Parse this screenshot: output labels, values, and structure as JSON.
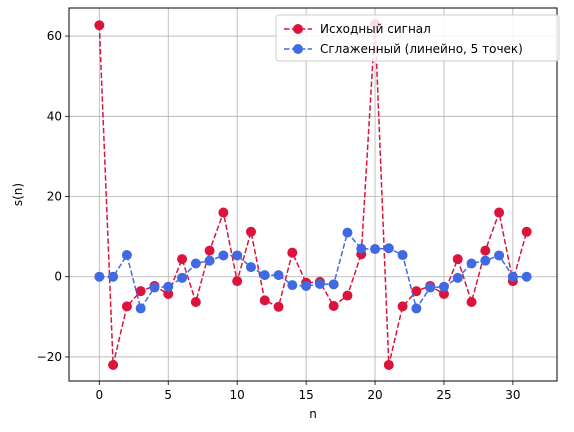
{
  "chart_data": {
    "type": "line",
    "xlabel": "n",
    "ylabel": "s(n)",
    "xlim": [
      -2.2,
      33.2
    ],
    "ylim": [
      -26,
      67
    ],
    "xticks": [
      0,
      5,
      10,
      15,
      20,
      25,
      30
    ],
    "yticks": [
      -20,
      0,
      20,
      40,
      60
    ],
    "ytick_labels": [
      "−20",
      "0",
      "20",
      "40",
      "60"
    ],
    "grid": true,
    "legend_position": "top-right",
    "x": [
      0,
      1,
      2,
      3,
      4,
      5,
      6,
      7,
      8,
      9,
      10,
      11,
      12,
      13,
      14,
      15,
      16,
      17,
      18,
      19,
      20,
      21,
      22,
      23,
      24,
      25,
      26,
      27,
      28,
      29,
      30,
      31
    ],
    "series": [
      {
        "name": "Исходный сигнал",
        "color": "#dc143c",
        "values": [
          62.7,
          -22,
          -7.4,
          -3.6,
          -2.3,
          -4.3,
          4.4,
          -6.3,
          6.5,
          16,
          -1.1,
          11.2,
          -5.9,
          -7.5,
          6,
          -1.5,
          -1.3,
          -7.3,
          -4.7,
          5.6,
          63,
          -22,
          -7.4,
          -3.6,
          -2.3,
          -4.3,
          4.4,
          -6.3,
          6.5,
          16,
          -1.1,
          11.2
        ]
      },
      {
        "name": "Сглаженный (линейно, 5 точек)",
        "color": "#4169e1",
        "values": [
          0,
          0,
          5.4,
          -7.9,
          -2.7,
          -2.5,
          -0.3,
          3.3,
          4,
          5.3,
          5.3,
          2.4,
          0.4,
          0.4,
          -2.1,
          -2.3,
          -1.8,
          -1.9,
          11,
          7,
          6.9,
          7.1,
          5.4,
          -7.9,
          -2.7,
          -2.5,
          -0.3,
          3.3,
          4,
          5.3,
          0,
          0
        ]
      }
    ]
  }
}
